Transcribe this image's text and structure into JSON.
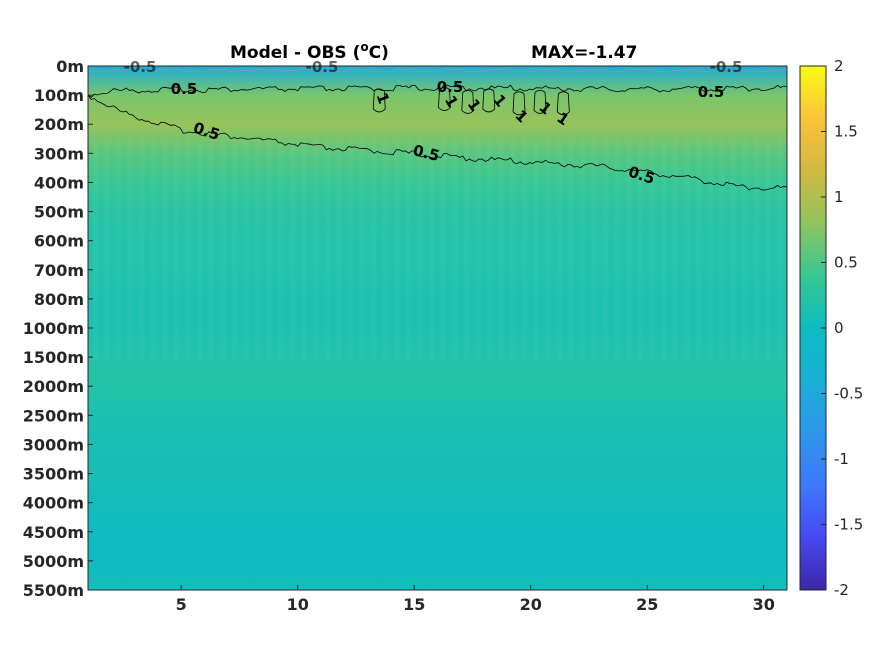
{
  "chart_data": {
    "type": "heatmap",
    "title_main": "Model - OBS (",
    "title_sup": "o",
    "title_unit": "C)",
    "title_max": "MAX=-1.47",
    "xlabel": "",
    "ylabel": "",
    "xlim": [
      1,
      31
    ],
    "xticks": [
      5,
      10,
      15,
      20,
      25,
      30
    ],
    "xtick_labels": [
      "5",
      "10",
      "15",
      "20",
      "25",
      "30"
    ],
    "yticks": [
      "0m",
      "100m",
      "200m",
      "300m",
      "400m",
      "500m",
      "600m",
      "700m",
      "800m",
      "1000m",
      "1500m",
      "2000m",
      "2500m",
      "3000m",
      "3500m",
      "4000m",
      "4500m",
      "5000m",
      "5500m"
    ],
    "colorbar": {
      "min": -2,
      "max": 2,
      "ticks": [
        2,
        1.5,
        1,
        0.5,
        0,
        -0.5,
        -1,
        -1.5,
        -2
      ],
      "tick_labels": [
        "2",
        "1.5",
        "1",
        "0.5",
        "0",
        "-0.5",
        "-1",
        "-1.5",
        "-2"
      ],
      "colormap": "parula"
    },
    "depth_profile": [
      {
        "depth": "0m",
        "value": -0.45
      },
      {
        "depth": "100m",
        "value": 0.7
      },
      {
        "depth": "200m",
        "value": 0.85
      },
      {
        "depth": "300m",
        "value": 0.55
      },
      {
        "depth": "400m",
        "value": 0.4
      },
      {
        "depth": "500m",
        "value": 0.25
      },
      {
        "depth": "600m",
        "value": 0.2
      },
      {
        "depth": "700m",
        "value": 0.2
      },
      {
        "depth": "800m",
        "value": 0.15
      },
      {
        "depth": "1000m",
        "value": 0.15
      },
      {
        "depth": "1500m",
        "value": 0.2
      },
      {
        "depth": "2000m",
        "value": 0.22
      },
      {
        "depth": "2500m",
        "value": 0.15
      },
      {
        "depth": "3000m",
        "value": 0.1
      },
      {
        "depth": "3500m",
        "value": 0.08
      },
      {
        "depth": "4000m",
        "value": 0.05
      },
      {
        "depth": "4500m",
        "value": 0.0
      },
      {
        "depth": "5000m",
        "value": 0.0
      },
      {
        "depth": "5500m",
        "value": 0.05
      }
    ],
    "contours": [
      {
        "level": 0.5,
        "label": "0.5",
        "x": [
          1,
          2,
          4,
          8,
          12,
          16,
          20,
          24,
          28,
          31
        ],
        "depth_index": [
          1.0,
          0.85,
          0.82,
          0.8,
          0.78,
          0.75,
          0.77,
          0.8,
          0.78,
          0.75
        ]
      },
      {
        "level": 0.5,
        "label": "0.5",
        "x": [
          1,
          2.5,
          5,
          8,
          11,
          14,
          17,
          20,
          23,
          26,
          29,
          31
        ],
        "depth_index": [
          1.0,
          1.6,
          2.2,
          2.5,
          2.8,
          2.95,
          3.15,
          3.3,
          3.45,
          3.75,
          4.15,
          4.2
        ]
      },
      {
        "level": -0.5,
        "label": "-0.5",
        "x": [
          1,
          31
        ],
        "depth_index": [
          0.15,
          0.15
        ]
      }
    ],
    "contour_labels": [
      {
        "text": "0.5"
      },
      {
        "text": "0.5"
      },
      {
        "text": "0.5"
      },
      {
        "text": "0.5"
      },
      {
        "text": "0.5"
      },
      {
        "text": "0.5"
      },
      {
        "text": "-0.5"
      },
      {
        "text": "-0.5"
      },
      {
        "text": "-0.5"
      },
      {
        "text": "1"
      },
      {
        "text": "1"
      },
      {
        "text": "1"
      },
      {
        "text": "1"
      },
      {
        "text": "1"
      },
      {
        "text": "1"
      },
      {
        "text": "1"
      }
    ]
  }
}
